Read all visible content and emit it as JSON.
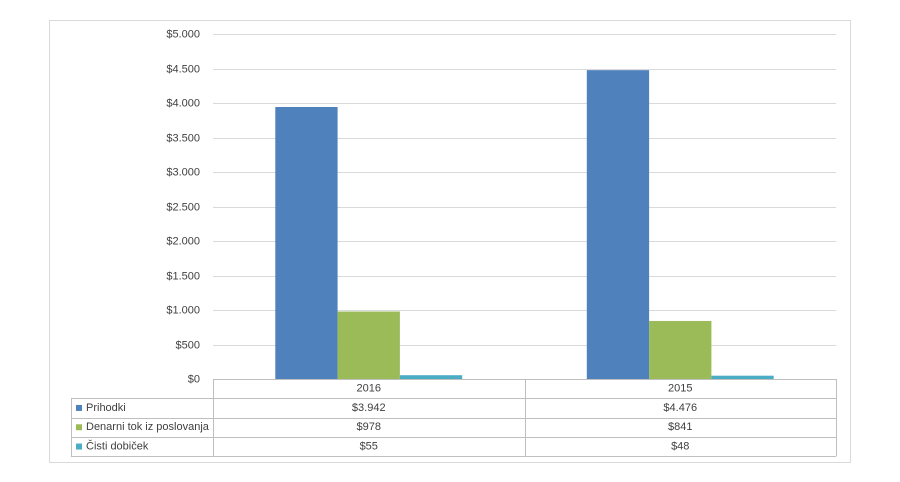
{
  "chart_data": {
    "type": "bar",
    "categories": [
      "2016",
      "2015"
    ],
    "series": [
      {
        "name": "Prihodki",
        "color": "#4f81bd",
        "values": [
          3942,
          4476
        ],
        "value_labels": [
          "$3.942",
          "$4.476"
        ]
      },
      {
        "name": "Denarni tok iz poslovanja",
        "color": "#9bbb59",
        "values": [
          978,
          841
        ],
        "value_labels": [
          "$978",
          "$841"
        ]
      },
      {
        "name": "Čisti dobiček",
        "color": "#4bacc6",
        "values": [
          55,
          48
        ],
        "value_labels": [
          "$55",
          "$48"
        ]
      }
    ],
    "ylim": [
      0,
      5000
    ],
    "yticks": [
      {
        "value": 0,
        "label": "$0"
      },
      {
        "value": 500,
        "label": "$500"
      },
      {
        "value": 1000,
        "label": "$1.000"
      },
      {
        "value": 1500,
        "label": "$1.500"
      },
      {
        "value": 2000,
        "label": "$2.000"
      },
      {
        "value": 2500,
        "label": "$2.500"
      },
      {
        "value": 3000,
        "label": "$3.000"
      },
      {
        "value": 3500,
        "label": "$3.500"
      },
      {
        "value": 4000,
        "label": "$4.000"
      },
      {
        "value": 4500,
        "label": "$4.500"
      },
      {
        "value": 5000,
        "label": "$5.000"
      }
    ],
    "grid": true
  }
}
